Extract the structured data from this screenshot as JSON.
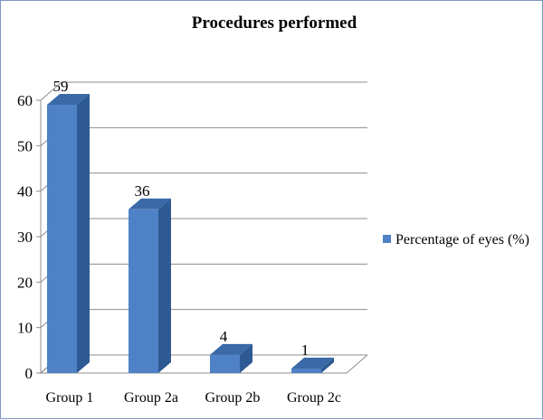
{
  "chart_data": {
    "type": "bar",
    "title": "Procedures performed",
    "categories": [
      "Group 1",
      "Group 2a",
      "Group 2b",
      "Group 2c"
    ],
    "series": [
      {
        "name": "Percentage of eyes (%)",
        "values": [
          59,
          36,
          4,
          1
        ]
      }
    ],
    "data_labels": [
      "59",
      "36",
      "4",
      "1"
    ],
    "y_ticks": [
      "0",
      "10",
      "20",
      "30",
      "40",
      "50",
      "60"
    ],
    "ylim": [
      0,
      60
    ],
    "grid": true,
    "style": "3d-column",
    "legend_position": "right",
    "colors": {
      "front": "#4f81c7",
      "side": "#2e5a93",
      "top": "#3a6aa8",
      "grid": "#8c8c8c"
    }
  }
}
